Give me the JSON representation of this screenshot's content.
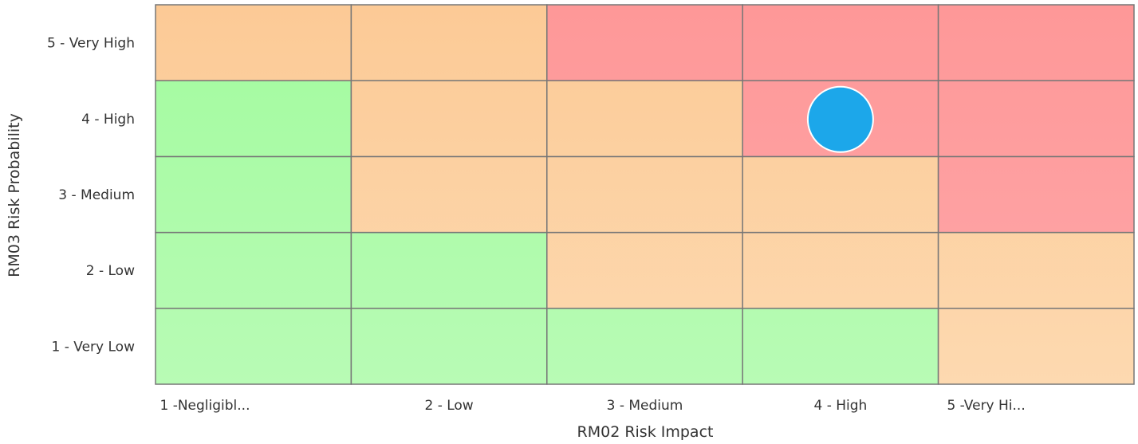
{
  "chart_data": {
    "type": "heatmap",
    "xlabel": "RM02 Risk Impact",
    "ylabel": "RM03 Risk Probability",
    "x_categories": [
      "1 -Negligibl...",
      "2 - Low",
      "3 - Medium",
      "4 - High",
      "5 -Very Hi..."
    ],
    "y_categories": [
      "1 - Very Low",
      "2 - Low",
      "3 - Medium",
      "4 - High",
      "5 - Very High"
    ],
    "levels": [
      [
        "low",
        "low",
        "low",
        "low",
        "medium"
      ],
      [
        "low",
        "low",
        "medium",
        "medium",
        "medium"
      ],
      [
        "low",
        "medium",
        "medium",
        "medium",
        "high"
      ],
      [
        "low",
        "medium",
        "medium",
        "high",
        "high"
      ],
      [
        "medium",
        "medium",
        "high",
        "high",
        "high"
      ]
    ],
    "level_colors": {
      "low": [
        "#b8fbb5",
        "#a2fb9e"
      ],
      "medium": [
        "#fdd9b0",
        "#fcca96"
      ],
      "high": [
        "#fea7a9",
        "#fe9898"
      ]
    },
    "points": [
      {
        "x": "4 - High",
        "y": "4 - High",
        "color": "#1ca7ea"
      }
    ],
    "grid": true
  }
}
